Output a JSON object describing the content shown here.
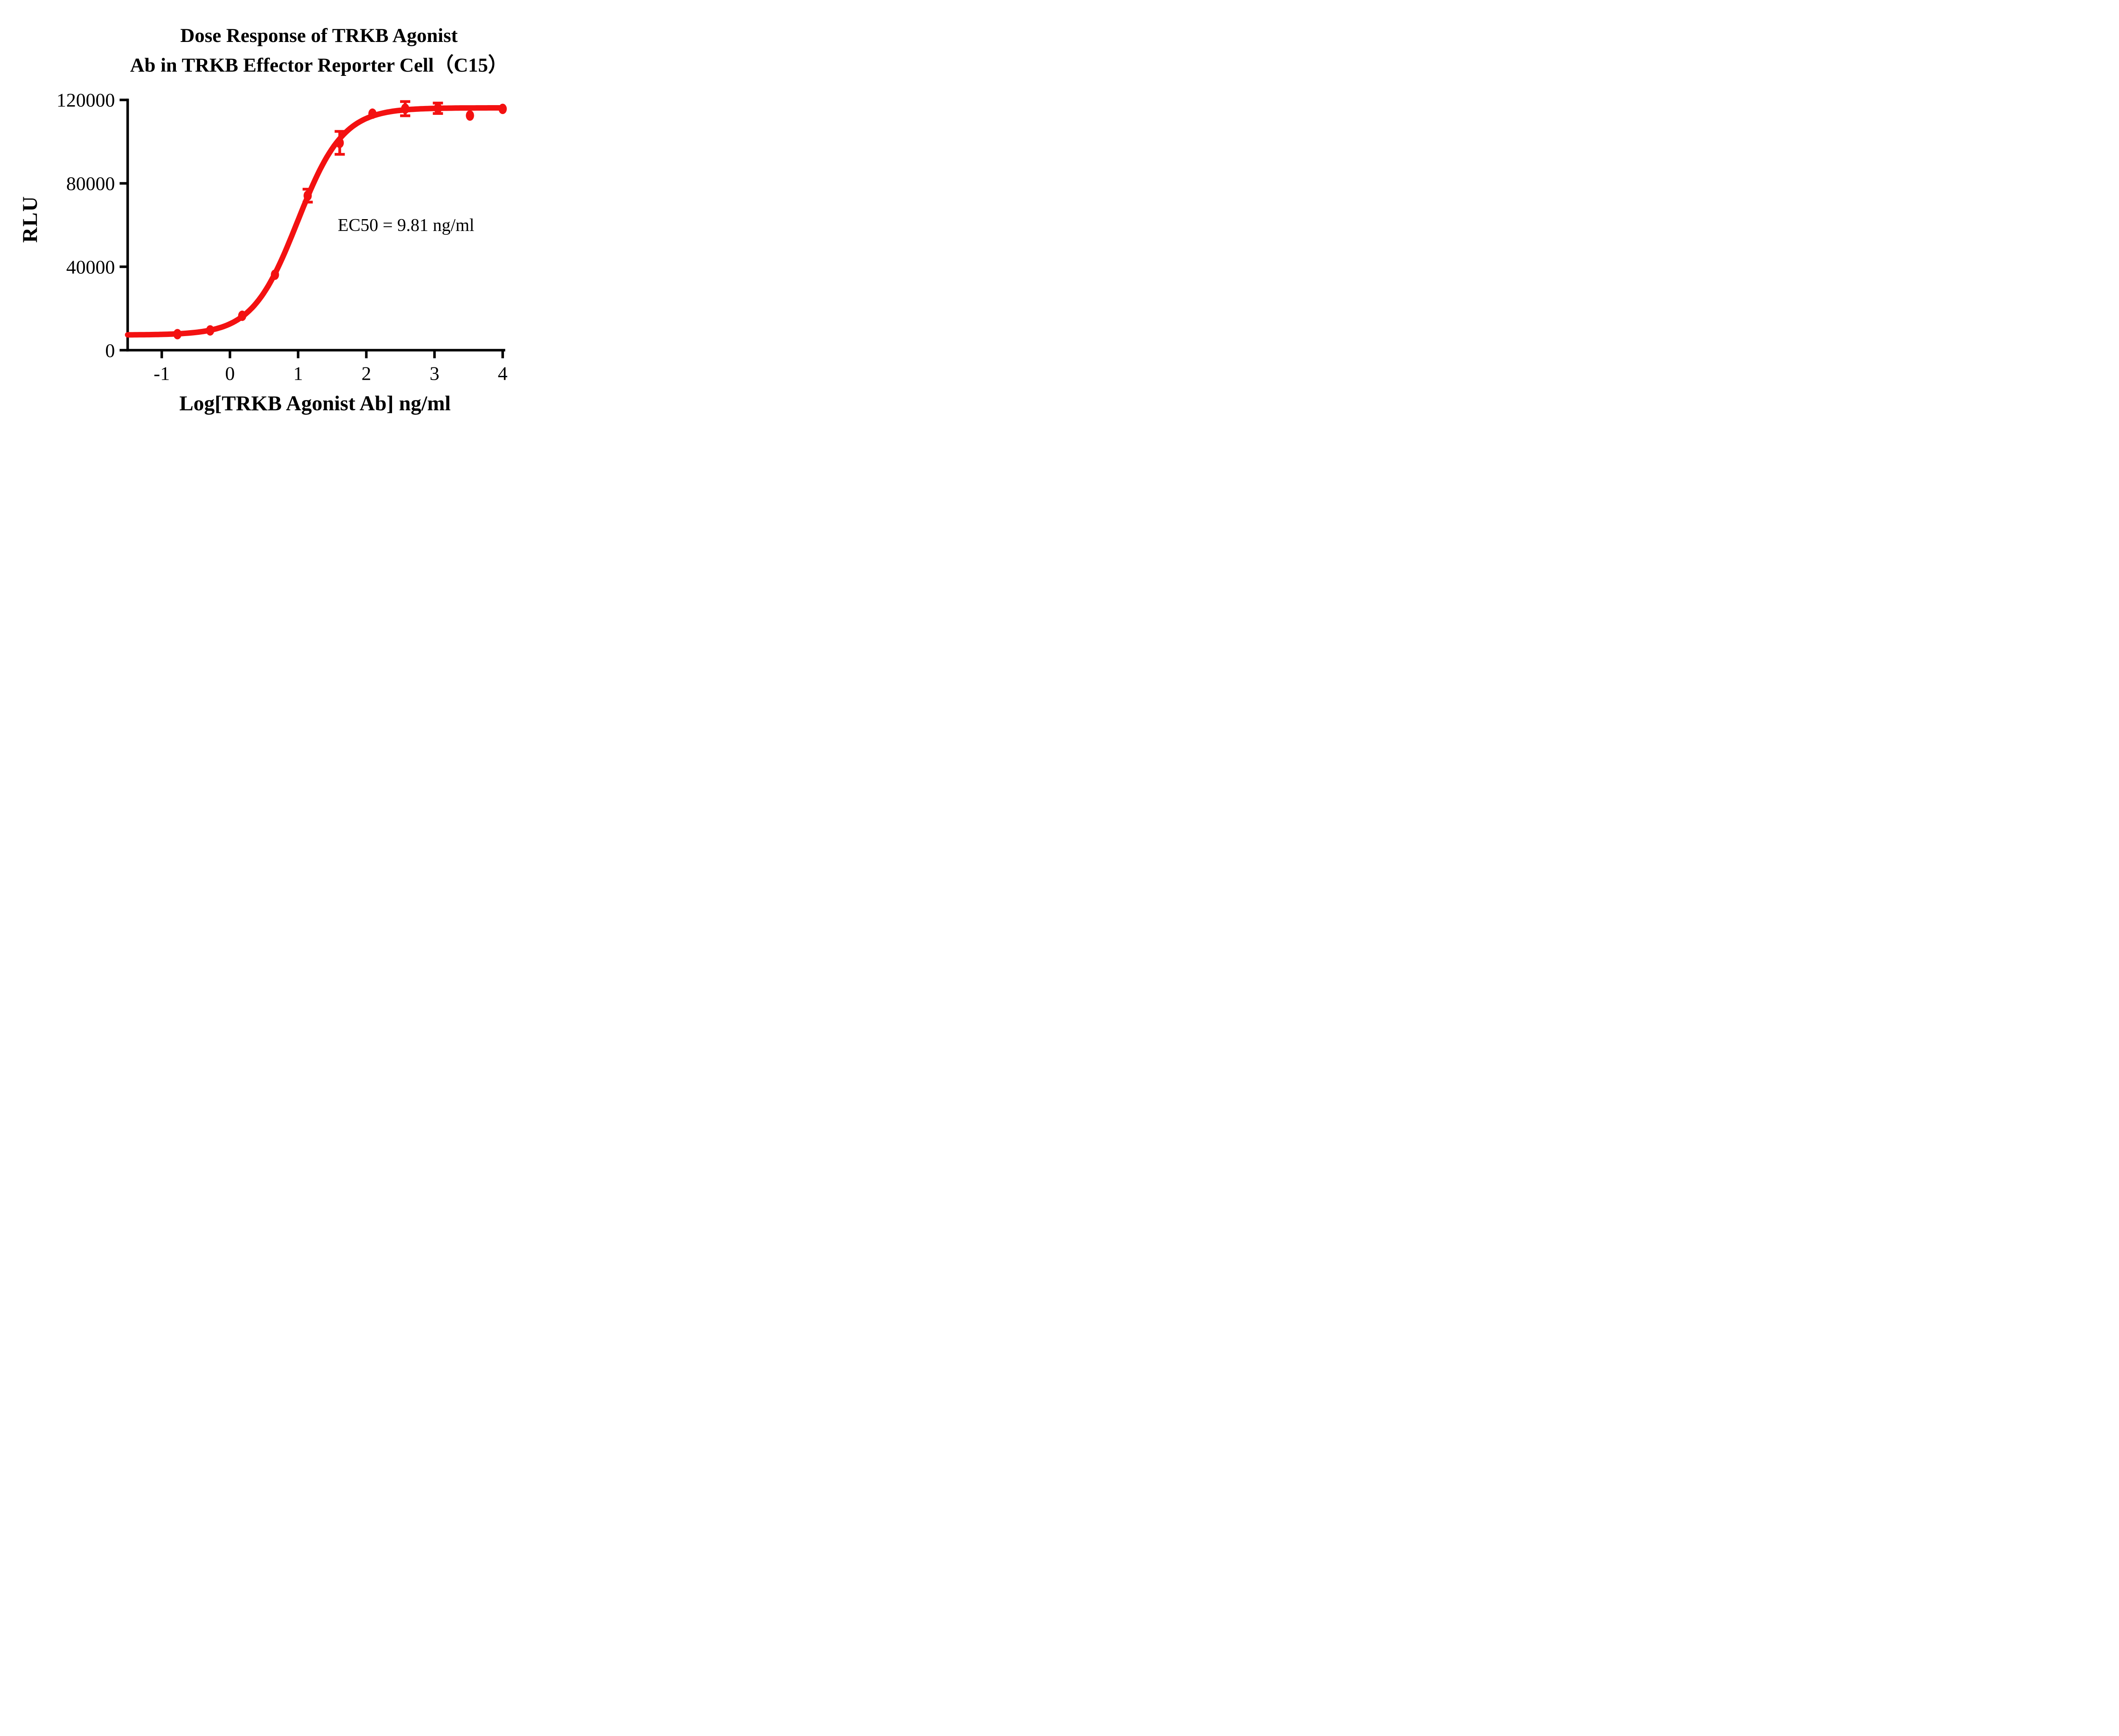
{
  "chart_data": {
    "type": "scatter",
    "title_lines": [
      "Dose Response of TRKB Agonist",
      "Ab in TRKB Effector Reporter Cell（C15）"
    ],
    "xlabel": "Log[TRKB Agonist Ab] ng/ml",
    "ylabel": "RLU",
    "annotation": "EC50 = 9.81 ng/ml",
    "ec50_ng_ml": 9.81,
    "xlim": [
      -1.5,
      4
    ],
    "ylim": [
      0,
      120000
    ],
    "x_ticks": [
      -1,
      0,
      1,
      2,
      3,
      4
    ],
    "y_ticks": [
      0,
      40000,
      80000,
      120000
    ],
    "grid": false,
    "legend": null,
    "axis_color": "#000000",
    "series": [
      {
        "name": "TRKB Agonist Ab",
        "color": "#f31111",
        "marker": "circle",
        "points": [
          {
            "x": -0.77,
            "y": 7700,
            "err": null
          },
          {
            "x": -0.29,
            "y": 9500,
            "err": null
          },
          {
            "x": 0.18,
            "y": 16500,
            "err": null
          },
          {
            "x": 0.66,
            "y": 36200,
            "err": null
          },
          {
            "x": 1.14,
            "y": 74100,
            "err": 3100
          },
          {
            "x": 1.61,
            "y": 99400,
            "err": 5500
          },
          {
            "x": 2.09,
            "y": 113400,
            "err": null
          },
          {
            "x": 2.57,
            "y": 115800,
            "err": 3400
          },
          {
            "x": 3.05,
            "y": 116000,
            "err": 2500
          },
          {
            "x": 3.52,
            "y": 112500,
            "err": null
          },
          {
            "x": 4.0,
            "y": 115700,
            "err": null
          }
        ],
        "fit": {
          "model": "4PL-sigmoid",
          "bottom": 7300,
          "top": 116200,
          "log_ec50": 0.992,
          "hill_slope": 1.3
        }
      }
    ]
  }
}
